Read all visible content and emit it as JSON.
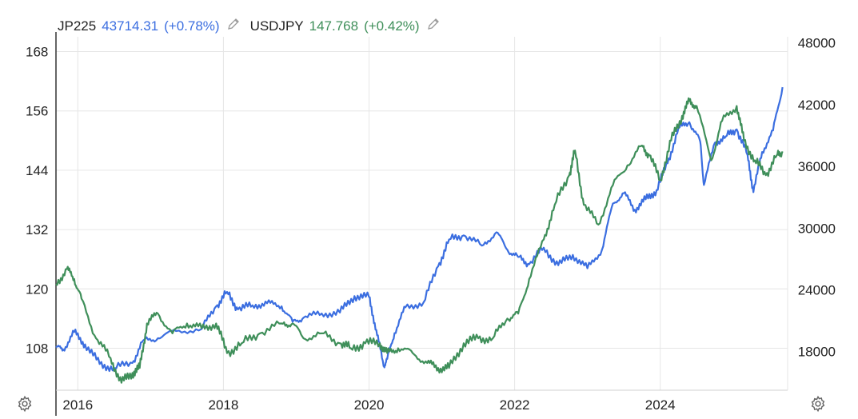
{
  "legend": {
    "series": [
      {
        "symbol": "JP225",
        "value": "43714.31",
        "change": "(+0.78%)",
        "color": "#3b6ee0",
        "edit_icon": "pencil-icon"
      },
      {
        "symbol": "USDJPY",
        "value": "147.768",
        "change": "(+0.42%)",
        "color": "#3f8f5a",
        "edit_icon": "pencil-icon"
      }
    ]
  },
  "settings_icon": "gear-icon",
  "chart_data": {
    "type": "line",
    "title": "",
    "xlabel": "",
    "x_ticks": [
      "2016",
      "2018",
      "2020",
      "2022",
      "2024"
    ],
    "x_range": [
      2015.7,
      2025.75
    ],
    "left_axis": {
      "series": "USDJPY",
      "ticks": [
        108,
        120,
        132,
        144,
        156,
        168
      ],
      "range": [
        99.5,
        171
      ]
    },
    "right_axis": {
      "series": "JP225",
      "ticks": [
        18000,
        24000,
        30000,
        36000,
        42000,
        48000
      ],
      "range": [
        14250,
        48600
      ]
    },
    "grid": true,
    "legend_position": "top-left",
    "series": [
      {
        "name": "JP225",
        "axis": "right",
        "color": "#3b6ee0",
        "x": [
          2015.7,
          2015.8,
          2015.95,
          2016.1,
          2016.3,
          2016.5,
          2016.75,
          2016.9,
          2017.1,
          2017.35,
          2017.7,
          2017.9,
          2018.05,
          2018.2,
          2018.4,
          2018.6,
          2018.8,
          2018.95,
          2019.1,
          2019.35,
          2019.6,
          2019.8,
          2020.0,
          2020.1,
          2020.2,
          2020.25,
          2020.35,
          2020.5,
          2020.75,
          2020.95,
          2021.1,
          2021.3,
          2021.55,
          2021.75,
          2021.9,
          2022.05,
          2022.2,
          2022.4,
          2022.6,
          2022.8,
          2023.0,
          2023.2,
          2023.35,
          2023.5,
          2023.65,
          2023.8,
          2023.95,
          2024.1,
          2024.25,
          2024.4,
          2024.55,
          2024.6,
          2024.75,
          2024.9,
          2025.05,
          2025.2,
          2025.28,
          2025.4,
          2025.55,
          2025.68
        ],
        "y": [
          18400,
          18200,
          19900,
          18700,
          16800,
          16400,
          16900,
          19100,
          19300,
          20000,
          20200,
          22400,
          23800,
          22100,
          22500,
          22700,
          22400,
          20900,
          21300,
          21700,
          21800,
          23400,
          23300,
          20100,
          16600,
          17300,
          19800,
          22300,
          22800,
          26300,
          28900,
          29300,
          28300,
          29600,
          27900,
          27200,
          26500,
          28100,
          26400,
          27400,
          26100,
          27900,
          32400,
          33400,
          31800,
          32800,
          33700,
          36300,
          39700,
          40300,
          38400,
          34200,
          38300,
          38900,
          39600,
          37100,
          33500,
          37400,
          39500,
          43700
        ]
      },
      {
        "name": "USDJPY",
        "axis": "left",
        "color": "#3f8f5a",
        "x": [
          2015.7,
          2015.85,
          2015.95,
          2016.05,
          2016.25,
          2016.45,
          2016.6,
          2016.75,
          2016.85,
          2016.95,
          2017.1,
          2017.3,
          2017.5,
          2017.7,
          2017.9,
          2018.05,
          2018.25,
          2018.5,
          2018.8,
          2018.95,
          2019.1,
          2019.35,
          2019.6,
          2019.75,
          2019.95,
          2020.15,
          2020.25,
          2020.4,
          2020.6,
          2020.8,
          2020.95,
          2021.1,
          2021.3,
          2021.5,
          2021.7,
          2021.9,
          2022.05,
          2022.2,
          2022.4,
          2022.55,
          2022.75,
          2022.83,
          2022.95,
          2023.15,
          2023.35,
          2023.55,
          2023.75,
          2023.85,
          2024.0,
          2024.15,
          2024.3,
          2024.4,
          2024.5,
          2024.7,
          2024.85,
          2025.05,
          2025.15,
          2025.3,
          2025.45,
          2025.6,
          2025.68
        ],
        "y": [
          121,
          124,
          122,
          118,
          110,
          106,
          101,
          103,
          104,
          113,
          115,
          111,
          113,
          112,
          113,
          107,
          109,
          111,
          113,
          113,
          110,
          111,
          109,
          108,
          109,
          109,
          107,
          108,
          107,
          105,
          104,
          104,
          109,
          110,
          110,
          114,
          115,
          122,
          130,
          137,
          143,
          148,
          137,
          133,
          141,
          145,
          149,
          147,
          142,
          150,
          155,
          158,
          157,
          146,
          154,
          157,
          150,
          146,
          143,
          147,
          147.8
        ]
      }
    ]
  }
}
